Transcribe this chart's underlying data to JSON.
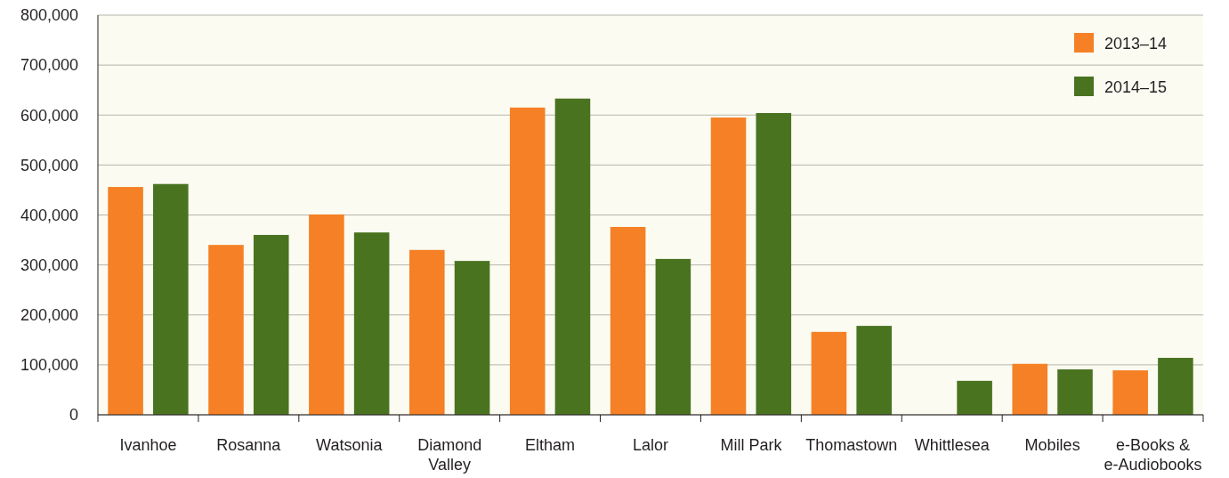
{
  "chart_data": {
    "type": "bar",
    "categories": [
      "Ivanhoe",
      "Rosanna",
      "Watsonia",
      "Diamond Valley",
      "Eltham",
      "Lalor",
      "Mill Park",
      "Thomastown",
      "Whittlesea",
      "Mobiles",
      "e-Books & e-Audiobooks"
    ],
    "series": [
      {
        "name": "2013–14",
        "color": "#f58025",
        "values": [
          456000,
          340000,
          401000,
          330000,
          615000,
          376000,
          595000,
          166000,
          null,
          102000,
          89000
        ]
      },
      {
        "name": "2014–15",
        "color": "#4a7320",
        "values": [
          462000,
          360000,
          365000,
          308000,
          633000,
          312000,
          604000,
          178000,
          68000,
          91000,
          114000
        ]
      }
    ],
    "ylim": [
      0,
      800000
    ],
    "yticks": [
      {
        "value": 0,
        "label": "0"
      },
      {
        "value": 100000,
        "label": "100,000"
      },
      {
        "value": 200000,
        "label": "200,000"
      },
      {
        "value": 300000,
        "label": "300,000"
      },
      {
        "value": 400000,
        "label": "400,000"
      },
      {
        "value": 500000,
        "label": "500,000"
      },
      {
        "value": 600000,
        "label": "600,000"
      },
      {
        "value": 700000,
        "label": "700,000"
      },
      {
        "value": 800000,
        "label": "800,000"
      }
    ],
    "grid": "y",
    "legend": "top right"
  }
}
